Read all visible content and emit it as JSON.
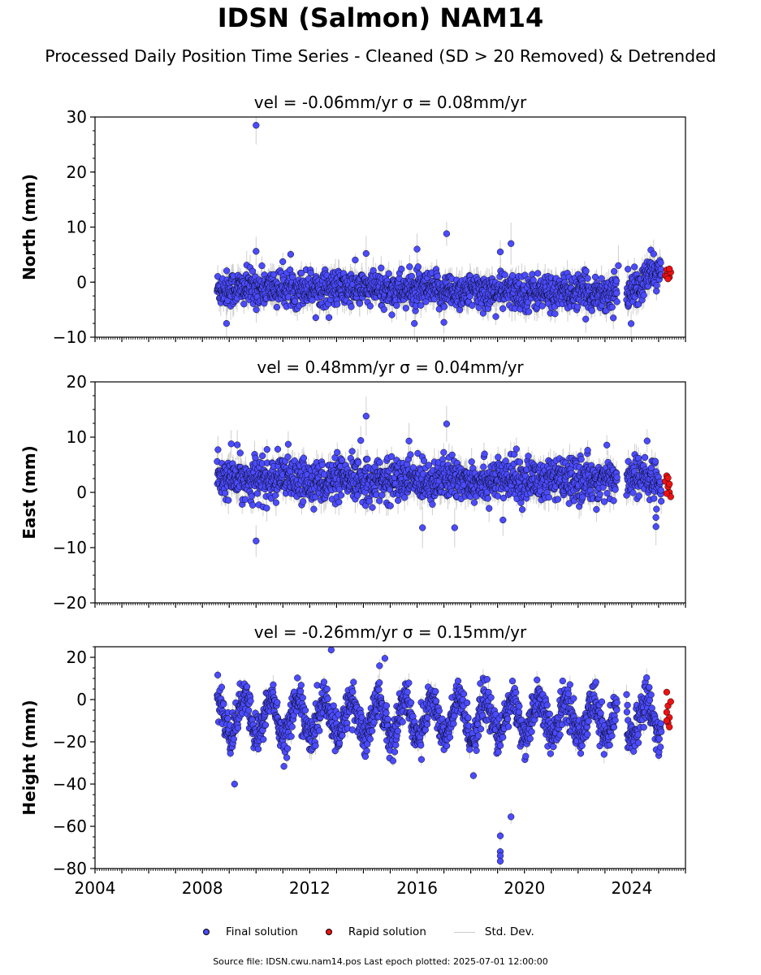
{
  "title": "IDSN (Salmon) NAM14",
  "subtitle": "Processed Daily Position Time Series - Cleaned (SD > 20 Removed) & Detrended",
  "footer": "Source file: IDSN.cwu.nam14.pos  Last epoch plotted: 2025-07-01 12:00:00",
  "legend": {
    "final": "Final solution",
    "rapid": "Rapid solution",
    "std": "Std. Dev."
  },
  "colors": {
    "final": "#4b4bff",
    "rapid": "#ee1111",
    "std": "#bfbfbf",
    "edge": "#000000"
  },
  "chart_data": [
    {
      "type": "scatter",
      "title": "vel = -0.06mm/yr   σ = 0.08mm/yr",
      "ylabel": "North (mm)",
      "xlim": [
        2004,
        2026
      ],
      "ylim": [
        -10,
        30
      ],
      "yticks": [
        -10,
        0,
        10,
        20,
        30
      ],
      "xticks": [
        2004,
        2008,
        2012,
        2016,
        2020,
        2024
      ],
      "final_range": [
        2008.55,
        2025.1
      ],
      "rapid_range": [
        2025.1,
        2025.5
      ],
      "trend": [
        [
          2008.6,
          -1.2
        ],
        [
          2012,
          -1.0
        ],
        [
          2016,
          -1.5
        ],
        [
          2020,
          -1.8
        ],
        [
          2023.5,
          -2.0
        ],
        [
          2024.3,
          -1.2
        ],
        [
          2024.7,
          2.0
        ],
        [
          2025.4,
          1.5
        ]
      ],
      "scatter_sd": 1.6,
      "outliers": [
        [
          2010.0,
          28.5
        ],
        [
          2017.1,
          8.8
        ],
        [
          2019.5,
          7.0
        ],
        [
          2019.1,
          5.5
        ],
        [
          2010.0,
          5.6
        ],
        [
          2016.0,
          6.0
        ],
        [
          2014.1,
          5.2
        ],
        [
          2008.9,
          -7.5
        ],
        [
          2015.9,
          -7.5
        ],
        [
          2017.0,
          -7.3
        ],
        [
          2023.5,
          3.0
        ]
      ],
      "rapid_points": [
        [
          2025.25,
          1.2
        ],
        [
          2025.3,
          2.2
        ],
        [
          2025.35,
          1.6
        ],
        [
          2025.4,
          0.9
        ],
        [
          2025.45,
          1.8
        ],
        [
          2025.3,
          1.0
        ],
        [
          2025.4,
          2.4
        ],
        [
          2025.35,
          0.6
        ]
      ]
    },
    {
      "type": "scatter",
      "title": "vel = 0.48mm/yr   σ = 0.04mm/yr",
      "ylabel": "East (mm)",
      "xlim": [
        2004,
        2026
      ],
      "ylim": [
        -20,
        20
      ],
      "yticks": [
        -20,
        -10,
        0,
        10,
        20
      ],
      "xticks": [
        2004,
        2008,
        2012,
        2016,
        2020,
        2024
      ],
      "final_range": [
        2008.55,
        2025.1
      ],
      "rapid_range": [
        2025.1,
        2025.5
      ],
      "trend": [
        [
          2008.6,
          2.5
        ],
        [
          2012,
          2.0
        ],
        [
          2016,
          2.3
        ],
        [
          2020,
          2.2
        ],
        [
          2023.5,
          2.3
        ],
        [
          2024.3,
          3.0
        ],
        [
          2025.4,
          1.0
        ]
      ],
      "scatter_sd": 1.9,
      "outliers": [
        [
          2014.1,
          13.8
        ],
        [
          2017.1,
          12.4
        ],
        [
          2013.9,
          9.4
        ],
        [
          2015.7,
          9.3
        ],
        [
          2011.2,
          8.7
        ],
        [
          2009.3,
          8.6
        ],
        [
          2010.0,
          -8.8
        ],
        [
          2016.2,
          -6.4
        ],
        [
          2017.4,
          -6.4
        ],
        [
          2024.9,
          -6.2
        ],
        [
          2019.2,
          -5.0
        ]
      ],
      "rapid_points": [
        [
          2025.25,
          2.0
        ],
        [
          2025.3,
          3.0
        ],
        [
          2025.35,
          1.0
        ],
        [
          2025.4,
          0.0
        ],
        [
          2025.45,
          -0.8
        ],
        [
          2025.35,
          2.6
        ],
        [
          2025.3,
          -0.2
        ],
        [
          2025.4,
          1.5
        ]
      ]
    },
    {
      "type": "scatter",
      "title": "vel = -0.26mm/yr   σ = 0.15mm/yr",
      "ylabel": "Height (mm)",
      "xlim": [
        2004,
        2026
      ],
      "ylim": [
        -80,
        25
      ],
      "yticks": [
        -80,
        -60,
        -40,
        -20,
        0,
        20
      ],
      "xticks": [
        2004,
        2008,
        2012,
        2016,
        2020,
        2024
      ],
      "final_range": [
        2008.55,
        2025.1
      ],
      "rapid_range": [
        2025.1,
        2025.5
      ],
      "trend": [
        [
          2008.6,
          -8
        ],
        [
          2012,
          -9
        ],
        [
          2016,
          -9
        ],
        [
          2020,
          -9
        ],
        [
          2023.5,
          -9
        ],
        [
          2024.3,
          -9
        ],
        [
          2025.4,
          -8
        ]
      ],
      "seasonal_amp": 9,
      "scatter_sd": 4.5,
      "outliers": [
        [
          2019.1,
          -64.5
        ],
        [
          2019.1,
          -72.0
        ],
        [
          2019.1,
          -74.0
        ],
        [
          2019.1,
          -76.5
        ],
        [
          2019.5,
          -55.5
        ],
        [
          2009.2,
          -40.0
        ],
        [
          2012.8,
          23.5
        ],
        [
          2014.8,
          19.5
        ],
        [
          2014.6,
          16.0
        ],
        [
          2018.1,
          -36.0
        ]
      ],
      "rapid_points": [
        [
          2025.3,
          3.5
        ],
        [
          2025.35,
          -3.0
        ],
        [
          2025.3,
          -6.0
        ],
        [
          2025.4,
          -8.5
        ],
        [
          2025.35,
          -11.0
        ],
        [
          2025.4,
          -13.0
        ],
        [
          2025.3,
          -10.0
        ],
        [
          2025.45,
          -1.0
        ]
      ]
    }
  ]
}
